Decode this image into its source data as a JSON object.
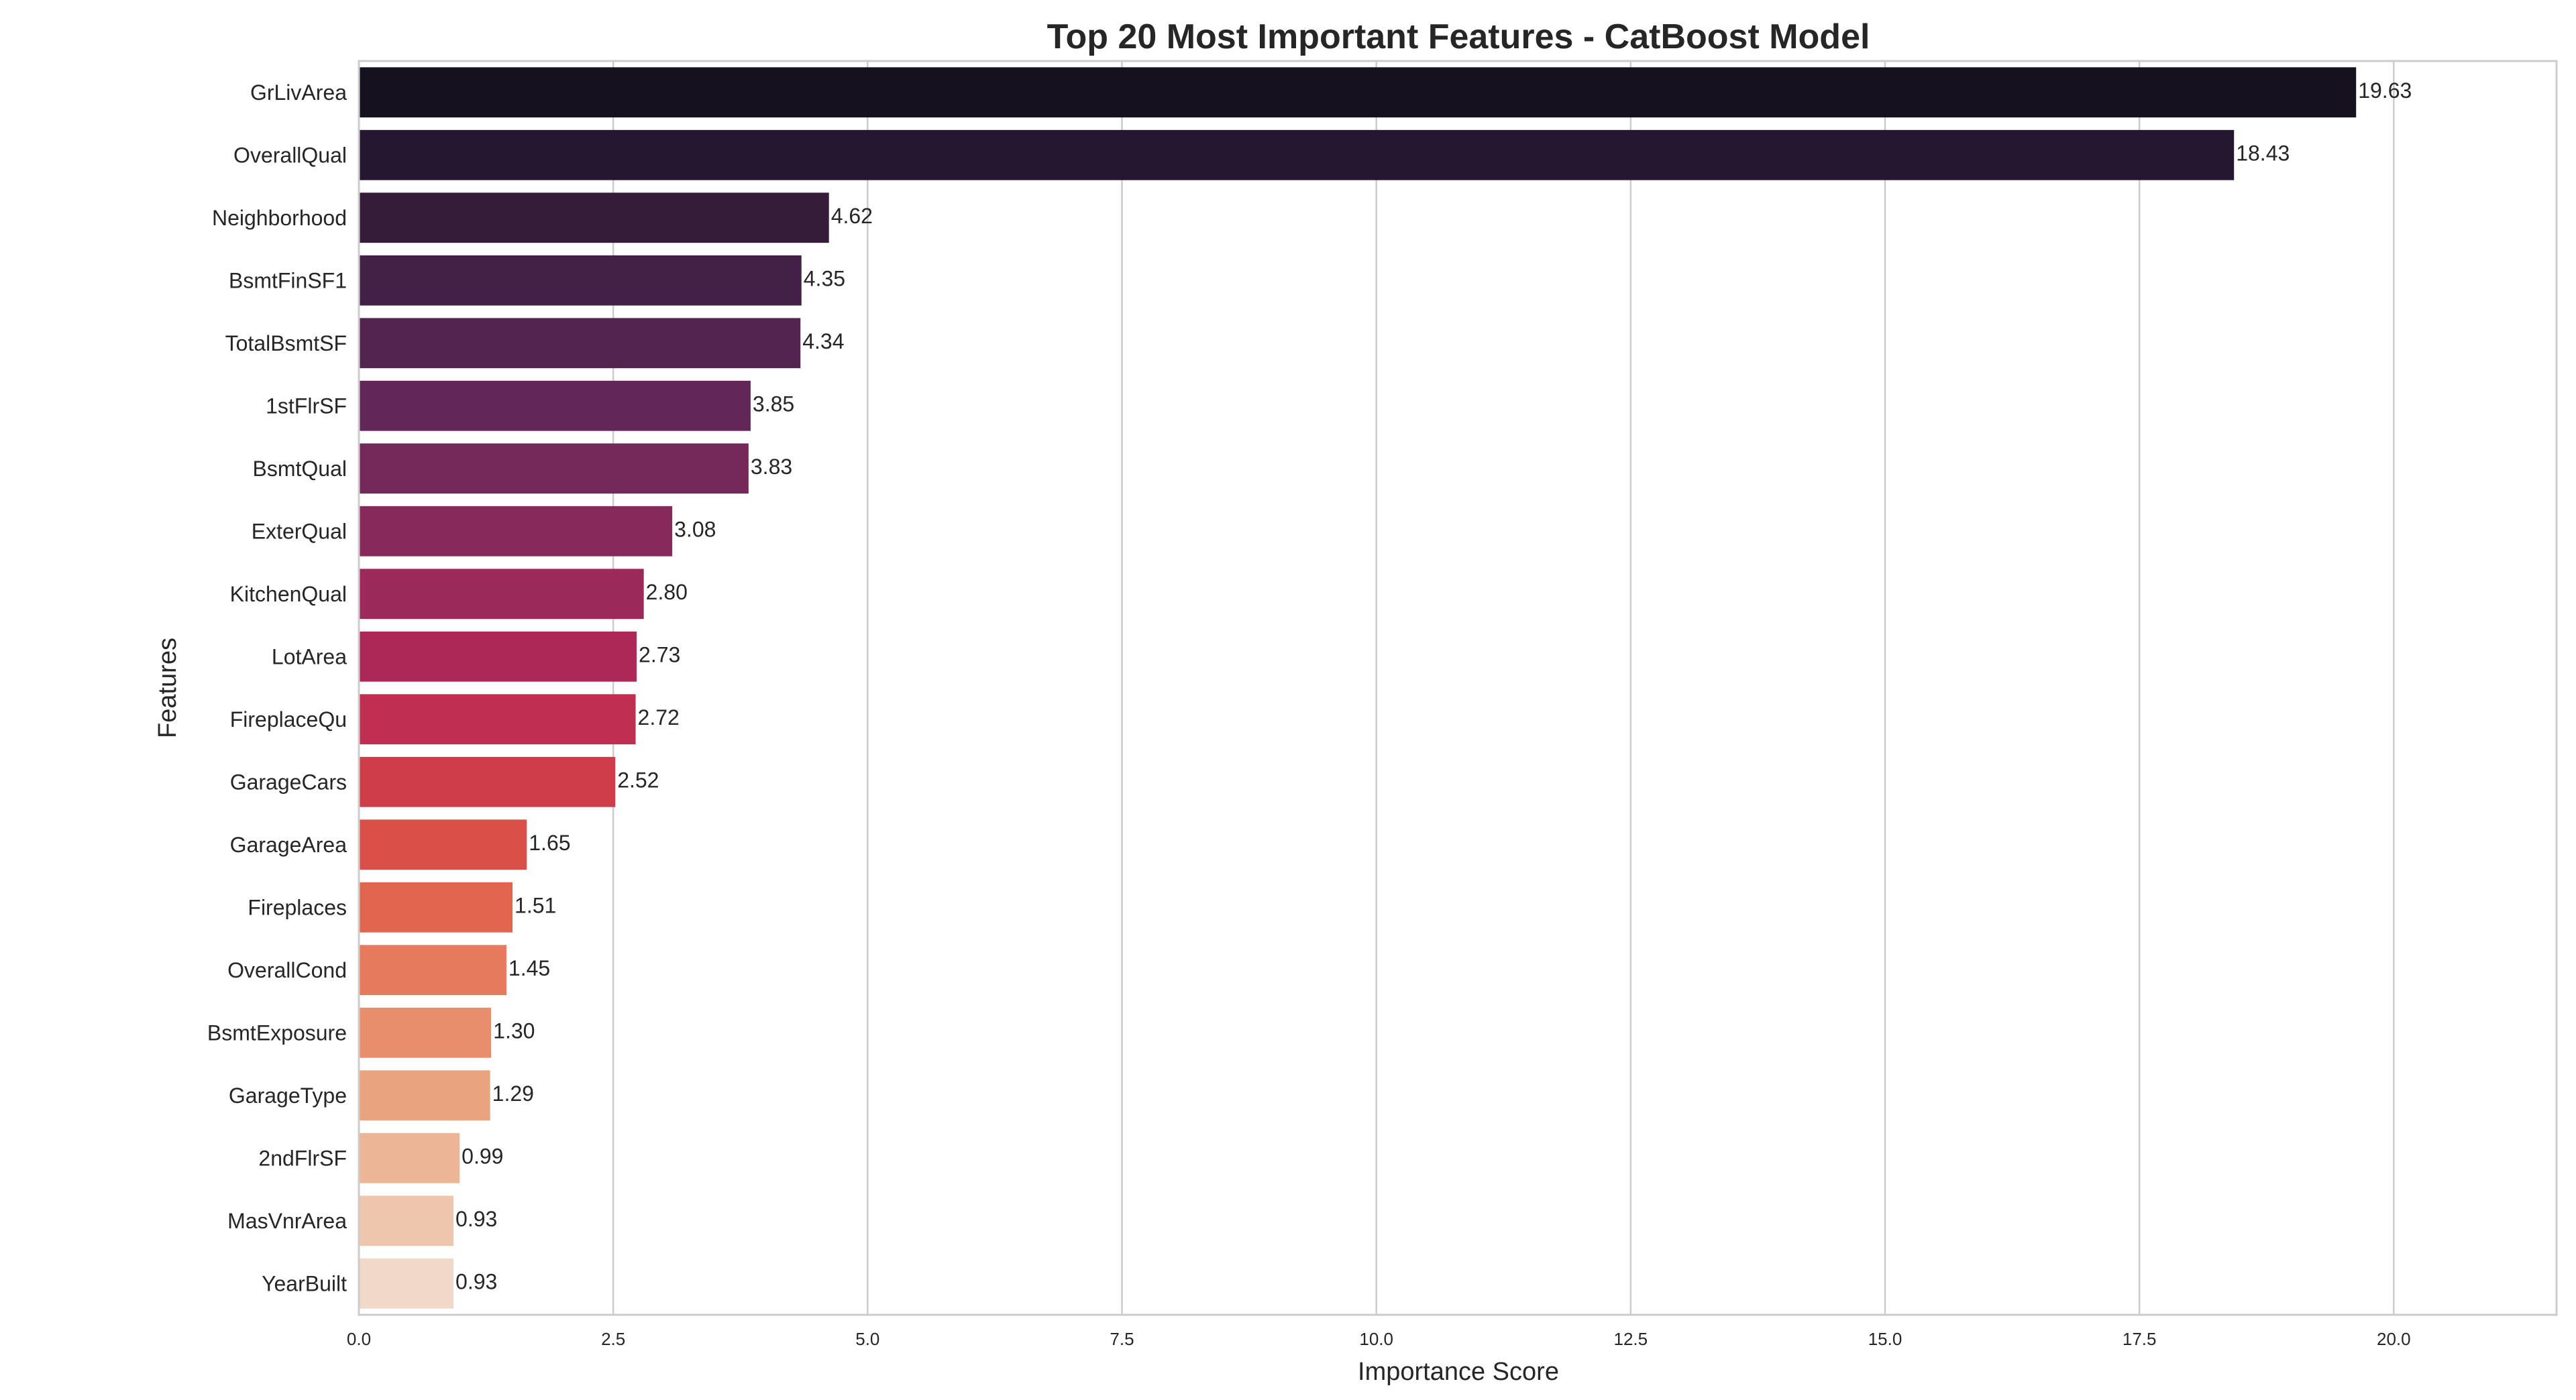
{
  "chart_data": {
    "type": "bar",
    "orientation": "horizontal",
    "title": "Top 20 Most Important Features - CatBoost Model",
    "xlabel": "Importance Score",
    "ylabel": "Features",
    "xlim": [
      0,
      21.6
    ],
    "grid": true,
    "xticks": [
      "0.0",
      "2.5",
      "5.0",
      "7.5",
      "10.0",
      "12.5",
      "15.0",
      "17.5",
      "20.0"
    ],
    "categories": [
      "GrLivArea",
      "OverallQual",
      "Neighborhood",
      "BsmtFinSF1",
      "TotalBsmtSF",
      "1stFlrSF",
      "BsmtQual",
      "ExterQual",
      "KitchenQual",
      "LotArea",
      "FireplaceQu",
      "GarageCars",
      "GarageArea",
      "Fireplaces",
      "OverallCond",
      "BsmtExposure",
      "GarageType",
      "2ndFlrSF",
      "MasVnrArea",
      "YearBuilt"
    ],
    "values": [
      19.63,
      18.43,
      4.62,
      4.35,
      4.34,
      3.85,
      3.83,
      3.08,
      2.8,
      2.73,
      2.72,
      2.52,
      1.65,
      1.51,
      1.45,
      1.3,
      1.29,
      0.99,
      0.93,
      0.93
    ],
    "labels": [
      "19.63",
      "18.43",
      "4.62",
      "4.35",
      "4.34",
      "3.85",
      "3.83",
      "3.08",
      "2.80",
      "2.73",
      "2.72",
      "2.52",
      "1.65",
      "1.51",
      "1.45",
      "1.30",
      "1.29",
      "0.99",
      "0.93",
      "0.93"
    ],
    "colors": [
      "#15111f",
      "#24172f",
      "#351d3a",
      "#432045",
      "#52244f",
      "#632658",
      "#74295a",
      "#88295b",
      "#9b295a",
      "#ae2857",
      "#c02f51",
      "#cf3d4b",
      "#da5048",
      "#e2654f",
      "#e67a5d",
      "#e98e6c",
      "#eaa37f",
      "#ecb596",
      "#eec6ad",
      "#f2d8c8"
    ]
  }
}
